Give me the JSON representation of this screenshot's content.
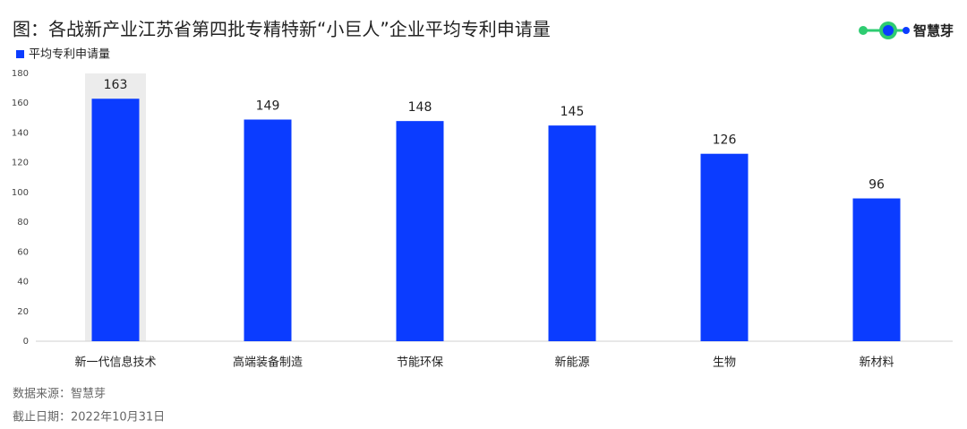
{
  "chart_data": {
    "type": "bar",
    "title": "图：各战新产业江苏省第四批专精特新“小巨人”企业平均专利申请量",
    "categories": [
      "新一代信息技术",
      "高端装备制造",
      "节能环保",
      "新能源",
      "生物",
      "新材料"
    ],
    "series": [
      {
        "name": "平均专利申请量",
        "color": "#0b3cff",
        "values": [
          163,
          149,
          148,
          145,
          126,
          96
        ]
      }
    ],
    "ylim": [
      0,
      180
    ],
    "yticks": [
      0,
      20,
      40,
      60,
      80,
      100,
      120,
      140,
      160,
      180
    ],
    "grid": false,
    "source": "数据来源：智慧芽",
    "date_note": "截止日期：2022年10月31日"
  },
  "logo": {
    "text": "智慧芽"
  }
}
